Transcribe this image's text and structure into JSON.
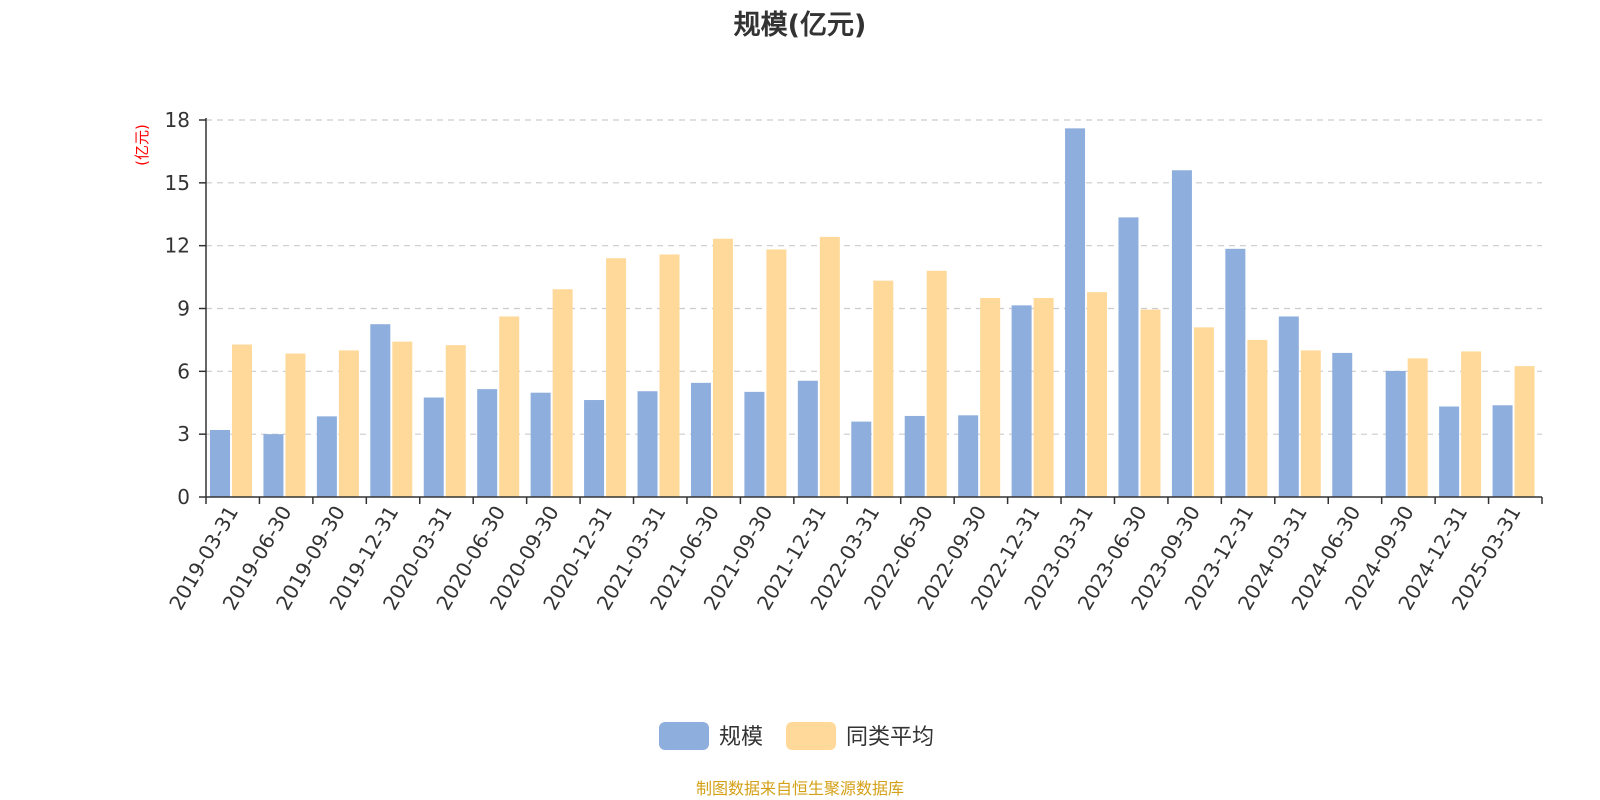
{
  "colors": {
    "series_scale": "#8eaedd",
    "series_avg": "#ffd99a",
    "unit_label": "#ff0000",
    "source_text": "#d4a017",
    "grid": "#cccccc",
    "axis": "#333333"
  },
  "footer": {
    "source": "制图数据来自恒生聚源数据库"
  },
  "chart_data": {
    "type": "bar",
    "title": "规模(亿元)",
    "ylabel": "(亿元)",
    "xlabel": "",
    "ylim": [
      0,
      18
    ],
    "yticks": [
      0,
      3,
      6,
      9,
      12,
      15,
      18
    ],
    "grid": true,
    "legend_position": "bottom-center",
    "categories": [
      "2019-03-31",
      "2019-06-30",
      "2019-09-30",
      "2019-12-31",
      "2020-03-31",
      "2020-06-30",
      "2020-09-30",
      "2020-12-31",
      "2021-03-31",
      "2021-06-30",
      "2021-09-30",
      "2021-12-31",
      "2022-03-31",
      "2022-06-30",
      "2022-09-30",
      "2022-12-31",
      "2023-03-31",
      "2023-06-30",
      "2023-09-30",
      "2023-12-31",
      "2024-03-31",
      "2024-06-30",
      "2024-09-30",
      "2024-12-31",
      "2025-03-31"
    ],
    "series": [
      {
        "name": "规模",
        "values": [
          3.2,
          3.0,
          3.85,
          8.25,
          4.75,
          5.15,
          4.98,
          4.63,
          5.05,
          5.45,
          5.02,
          5.55,
          3.6,
          3.87,
          3.9,
          9.15,
          17.6,
          13.35,
          15.6,
          11.85,
          8.62,
          6.88,
          6.02,
          4.32,
          4.38
        ]
      },
      {
        "name": "同类平均",
        "values": [
          7.28,
          6.85,
          7.0,
          7.42,
          7.25,
          8.62,
          9.92,
          11.4,
          11.58,
          12.33,
          11.82,
          12.42,
          10.33,
          10.8,
          9.5,
          9.5,
          9.78,
          8.95,
          8.1,
          7.5,
          7.0,
          null,
          6.62,
          6.95,
          6.25
        ]
      }
    ]
  }
}
